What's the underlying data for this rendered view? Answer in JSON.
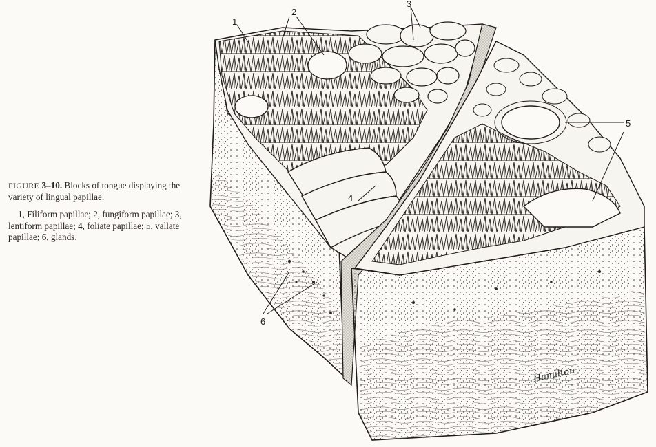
{
  "figure": {
    "label": "FIGURE",
    "number": "3–10.",
    "title": " Blocks of tongue displaying the variety of lingual papillae.",
    "legend": "1, Filiform papillae; 2, fungiform papillae; 3, lentiform papillae; 4, foliate papillae; 5, vallate papillae; 6, glands."
  },
  "callouts": [
    "1",
    "2",
    "3",
    "4",
    "5",
    "6"
  ],
  "signature": "Hamilton"
}
